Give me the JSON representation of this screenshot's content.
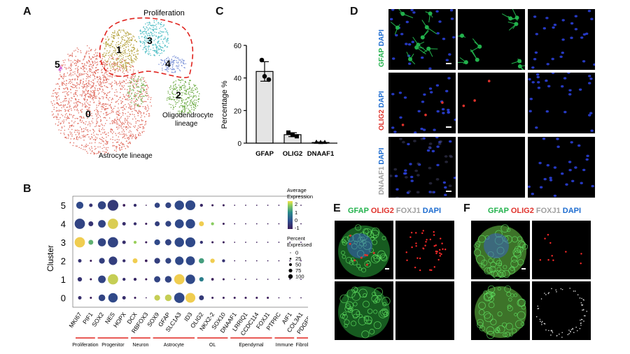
{
  "panels": {
    "A": "A",
    "B": "B",
    "C": "C",
    "D": "D",
    "E": "E",
    "F": "F"
  },
  "umap": {
    "clusters": [
      "0",
      "1",
      "2",
      "3",
      "4",
      "5"
    ],
    "proliferation_label": "Proliferation",
    "oligo_label_1": "Oligodendrocyte",
    "oligo_label_2": "lineage",
    "astro_label": "Astrocyte lineage",
    "colors": {
      "0": "#e06b5e",
      "1": "#b4a13a",
      "2": "#6bab43",
      "3": "#4dbdc4",
      "4": "#7b92d8",
      "5": "#d064d6"
    }
  },
  "chart_data": {
    "type": "bar",
    "categories": [
      "GFAP",
      "OLIG2",
      "DNAAF1"
    ],
    "values": [
      44,
      5.2,
      0.4
    ],
    "errors": [
      6,
      1.2,
      0.3
    ],
    "points": [
      [
        51,
        41,
        39
      ],
      [
        6.5,
        5,
        4.2
      ],
      [
        0.5,
        0.3,
        0.4
      ]
    ],
    "ylabel": "Percentage %",
    "yticks": [
      0,
      20,
      40,
      60
    ],
    "ylim": [
      0,
      60
    ]
  },
  "dotplot": {
    "ylabel": "Cluster",
    "clusters": [
      "5",
      "4",
      "3",
      "2",
      "1",
      "0"
    ],
    "genes": [
      "MKI67",
      "PIF1",
      "SOX2",
      "NES",
      "HOPX",
      "DCX",
      "RBFOX3",
      "SOX9",
      "GFAP",
      "SLC1A3",
      "ID3",
      "OLIG2",
      "NKX2-2",
      "SOX10",
      "DNAAF1",
      "LRRIQ1",
      "CCDC114",
      "FOXJ1",
      "PTPRC",
      "AIF1",
      "COL3A1",
      "PDGFRB"
    ],
    "groups": [
      {
        "label": "Proliferation",
        "start": 0,
        "end": 1
      },
      {
        "label": "Progenitor",
        "start": 2,
        "end": 4
      },
      {
        "label": "Neuron",
        "start": 5,
        "end": 6
      },
      {
        "label": "Astrocyte",
        "start": 7,
        "end": 10
      },
      {
        "label": "OL",
        "start": 11,
        "end": 13
      },
      {
        "label": "Ependymal",
        "start": 14,
        "end": 17
      },
      {
        "label": "Immune",
        "start": 18,
        "end": 19
      },
      {
        "label": "Fibroblast",
        "start": 20,
        "end": 21
      }
    ],
    "expr": {
      "5": [
        [
          0.6,
          -0.2
        ],
        [
          0.2,
          -0.6
        ],
        [
          0.7,
          -0.3
        ],
        [
          1,
          -0.5
        ],
        [
          0.1,
          -1
        ],
        [
          0.15,
          -0.7
        ],
        [
          0,
          -1
        ],
        [
          0.4,
          -0.3
        ],
        [
          0.45,
          -0.3
        ],
        [
          0.85,
          -0.2
        ],
        [
          0.9,
          -0.2
        ],
        [
          0.15,
          -0.8
        ],
        [
          0.05,
          -1
        ],
        [
          0.05,
          -1
        ],
        [
          0,
          -1
        ],
        [
          0,
          -1
        ],
        [
          0,
          -1
        ],
        [
          0,
          -1
        ],
        [
          0,
          -1
        ],
        [
          0,
          -1
        ],
        [
          0,
          -1
        ],
        [
          0.1,
          1.7
        ]
      ],
      "4": [
        [
          0.95,
          -0.3
        ],
        [
          0.35,
          -0.6
        ],
        [
          0.65,
          -0.3
        ],
        [
          0.95,
          1.9
        ],
        [
          0.2,
          -0.7
        ],
        [
          0.15,
          -0.7
        ],
        [
          0.05,
          -1
        ],
        [
          0.35,
          -0.4
        ],
        [
          0.45,
          -0.3
        ],
        [
          0.8,
          -0.2
        ],
        [
          0.85,
          -0.2
        ],
        [
          0.35,
          2
        ],
        [
          0.15,
          1.5
        ],
        [
          0.05,
          -1
        ],
        [
          0,
          -1
        ],
        [
          0,
          -1
        ],
        [
          0,
          -1
        ],
        [
          0,
          -1
        ],
        [
          0,
          -1
        ],
        [
          0,
          -1
        ],
        [
          0,
          -1
        ],
        [
          0,
          -1
        ]
      ],
      "3": [
        [
          0.95,
          2
        ],
        [
          0.35,
          1.2
        ],
        [
          0.7,
          -0.3
        ],
        [
          0.95,
          -0.3
        ],
        [
          0.2,
          -0.7
        ],
        [
          0.15,
          1.6
        ],
        [
          0.05,
          -1
        ],
        [
          0.45,
          -0.2
        ],
        [
          0.5,
          -0.3
        ],
        [
          0.85,
          -0.2
        ],
        [
          0.9,
          -0.2
        ],
        [
          0.15,
          -0.6
        ],
        [
          0.05,
          -1
        ],
        [
          0.05,
          -1
        ],
        [
          0,
          -1
        ],
        [
          0,
          -1
        ],
        [
          0,
          -1
        ],
        [
          0,
          -1
        ],
        [
          0,
          -1
        ],
        [
          0,
          -1
        ],
        [
          0,
          -1
        ],
        [
          0,
          -1
        ]
      ],
      "2": [
        [
          0.2,
          -0.6
        ],
        [
          0.05,
          -1
        ],
        [
          0.45,
          -0.4
        ],
        [
          0.75,
          -0.4
        ],
        [
          0.15,
          -0.7
        ],
        [
          0.35,
          2
        ],
        [
          0.1,
          -1
        ],
        [
          0.45,
          -0.4
        ],
        [
          0.45,
          -0.3
        ],
        [
          0.75,
          -0.2
        ],
        [
          0.8,
          -0.2
        ],
        [
          0.4,
          1
        ],
        [
          0.3,
          2
        ],
        [
          0.15,
          -0.6
        ],
        [
          0,
          -1
        ],
        [
          0,
          -1
        ],
        [
          0,
          -1
        ],
        [
          0,
          -1
        ],
        [
          0,
          -1
        ],
        [
          0,
          -1
        ],
        [
          0,
          -1
        ],
        [
          0,
          -1
        ]
      ],
      "1": [
        [
          0.3,
          -0.6
        ],
        [
          0.05,
          -1
        ],
        [
          0.65,
          -0.3
        ],
        [
          0.95,
          1.8
        ],
        [
          0.15,
          -0.7
        ],
        [
          0.15,
          -0.8
        ],
        [
          0.05,
          -1
        ],
        [
          0.5,
          -0.3
        ],
        [
          0.55,
          -0.3
        ],
        [
          0.95,
          2
        ],
        [
          0.85,
          -0.2
        ],
        [
          0.3,
          0.6
        ],
        [
          0.1,
          -1
        ],
        [
          0.05,
          -1
        ],
        [
          0,
          -1
        ],
        [
          0,
          -1
        ],
        [
          0,
          -1
        ],
        [
          0,
          -1
        ],
        [
          0,
          -1
        ],
        [
          0,
          -1
        ],
        [
          0,
          -1
        ],
        [
          0,
          -1
        ]
      ],
      "0": [
        [
          0.2,
          -0.7
        ],
        [
          0.05,
          -1
        ],
        [
          0.55,
          -0.3
        ],
        [
          0.85,
          -0.2
        ],
        [
          0.2,
          -0.7
        ],
        [
          0.05,
          -1
        ],
        [
          0,
          -1
        ],
        [
          0.45,
          1.8
        ],
        [
          0.55,
          1.8
        ],
        [
          0.95,
          -0.2
        ],
        [
          0.9,
          2
        ],
        [
          0.35,
          -0.5
        ],
        [
          0.05,
          -1
        ],
        [
          0.05,
          -1
        ],
        [
          0.05,
          -1
        ],
        [
          0.05,
          -1
        ],
        [
          0.05,
          -1
        ],
        [
          0.05,
          -1
        ],
        [
          0,
          -1
        ],
        [
          0,
          -1
        ],
        [
          0,
          -1
        ],
        [
          0,
          -1
        ]
      ]
    },
    "legend_title_1": "Average",
    "legend_title_2": "Expression",
    "color_ticks": [
      "2",
      "1",
      "0",
      "-1"
    ],
    "pct_title_1": "Percent",
    "pct_title_2": "Expressed",
    "pct_ticks": [
      "0",
      "25",
      "50",
      "75",
      "100"
    ]
  },
  "panelD": {
    "rows": [
      {
        "parts": [
          {
            "t": "GFAP",
            "c": "#22b24c"
          },
          {
            "t": " DAPI",
            "c": "#1d6cd0"
          }
        ]
      },
      {
        "parts": [
          {
            "t": "OLIG2",
            "c": "#e0322b"
          },
          {
            "t": " DAPI",
            "c": "#1d6cd0"
          }
        ]
      },
      {
        "parts": [
          {
            "t": "DNAAF1",
            "c": "#a0a0a0"
          },
          {
            "t": " DAPI",
            "c": "#1d6cd0"
          }
        ]
      }
    ]
  },
  "panelE": {
    "parts": [
      {
        "t": "GFAP",
        "c": "#22b24c"
      },
      {
        "t": " OLIG2",
        "c": "#e0322b"
      },
      {
        "t": " FOXJ1",
        "c": "#a0a0a0"
      },
      {
        "t": " DAPI",
        "c": "#1d6cd0"
      }
    ]
  },
  "panelF": {
    "parts": [
      {
        "t": "GFAP",
        "c": "#22b24c"
      },
      {
        "t": " OLIG2",
        "c": "#e0322b"
      },
      {
        "t": " FOXJ1",
        "c": "#a0a0a0"
      },
      {
        "t": " DAPI",
        "c": "#1d6cd0"
      }
    ]
  }
}
